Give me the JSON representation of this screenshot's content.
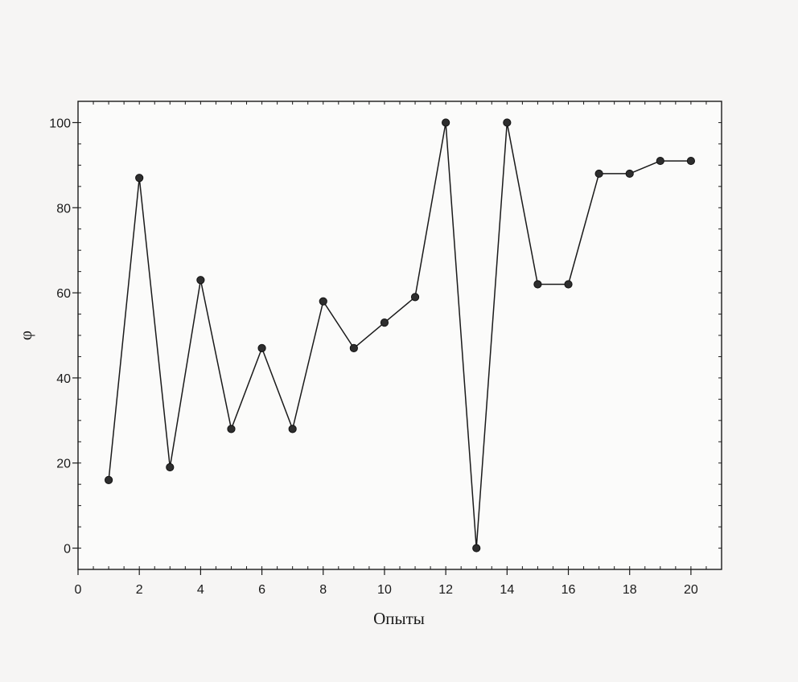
{
  "chart_data": {
    "type": "line",
    "title": "",
    "xlabel": "Опыты",
    "ylabel": "φ",
    "xlim": [
      0,
      21
    ],
    "ylim": [
      -5,
      105
    ],
    "x_ticks": [
      0,
      2,
      4,
      6,
      8,
      10,
      12,
      14,
      16,
      18,
      20
    ],
    "y_ticks": [
      0,
      20,
      40,
      60,
      80,
      100
    ],
    "grid": false,
    "legend": "none",
    "series": [
      {
        "x": [
          1,
          2,
          3,
          4,
          5,
          6,
          7,
          8,
          9,
          10,
          11,
          12,
          13,
          14,
          15,
          16,
          17,
          18,
          19,
          20
        ],
        "y": [
          16,
          87,
          19,
          63,
          28,
          47,
          28,
          58,
          47,
          53,
          59,
          100,
          0,
          100,
          62,
          62,
          88,
          88,
          91,
          91
        ],
        "color": "#1a1a1a",
        "marker": "circle"
      }
    ]
  }
}
